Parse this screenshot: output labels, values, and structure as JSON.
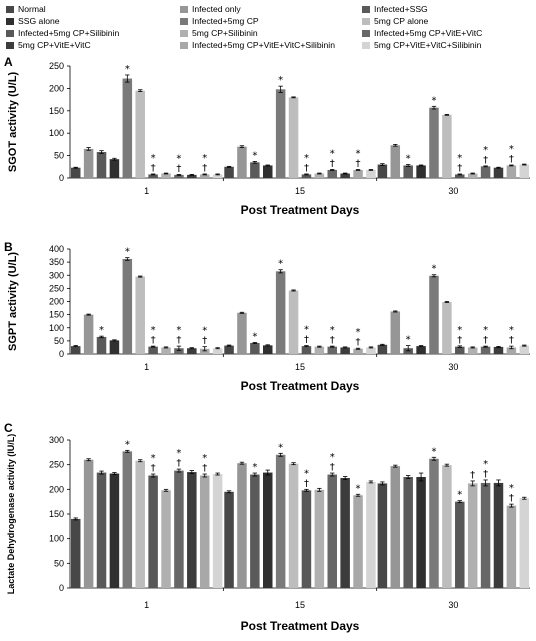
{
  "series": [
    {
      "name": "Normal",
      "color": "#474747"
    },
    {
      "name": "Infected only",
      "color": "#969696"
    },
    {
      "name": "Infected+SSG",
      "color": "#5a5a5a"
    },
    {
      "name": "SSG alone",
      "color": "#303030"
    },
    {
      "name": "Infected+5mg CP",
      "color": "#7a7a7a"
    },
    {
      "name": "5mg CP alone",
      "color": "#bdbdbd"
    },
    {
      "name": "Infected+5mg CP+Silibinin",
      "color": "#585858"
    },
    {
      "name": "5mg CP+Silibinin",
      "color": "#b0b0b0"
    },
    {
      "name": "Infected+5mg CP+VitE+VitC",
      "color": "#676767"
    },
    {
      "name": "5mg CP+VitE+VitC",
      "color": "#3c3c3c"
    },
    {
      "name": "Infected+5mg CP+VitE+VitC+Silibinin",
      "color": "#a8a8a8"
    },
    {
      "name": "5mg CP+VitE+VitC+Silibinin",
      "color": "#d4d4d4"
    }
  ],
  "chart_data": [
    {
      "panel": "A",
      "type": "bar",
      "categories": [
        "1",
        "15",
        "30"
      ],
      "xlabel": "Post Treatment Days",
      "ylabel": "SGOT activity (U/L)",
      "ylim": [
        0,
        250
      ],
      "yticks": [
        0,
        50,
        100,
        150,
        200,
        250
      ],
      "series_values": [
        [
          23,
          25,
          30
        ],
        [
          65,
          70,
          73
        ],
        [
          58,
          35,
          28
        ],
        [
          42,
          28,
          28
        ],
        [
          222,
          198,
          157
        ],
        [
          195,
          180,
          141
        ],
        [
          8,
          8,
          8
        ],
        [
          10,
          10,
          10
        ],
        [
          7,
          18,
          26
        ],
        [
          7,
          10,
          23
        ],
        [
          8,
          18,
          28
        ],
        [
          8,
          18,
          30
        ]
      ],
      "errors": [
        [
          1,
          1,
          2
        ],
        [
          3,
          2,
          2
        ],
        [
          3,
          2,
          2
        ],
        [
          2,
          1,
          1
        ],
        [
          8,
          7,
          3
        ],
        [
          2,
          1,
          1
        ],
        [
          1,
          1,
          1
        ],
        [
          1,
          1,
          1
        ],
        [
          1,
          1,
          1
        ],
        [
          1,
          1,
          1
        ],
        [
          1,
          1,
          1
        ],
        [
          1,
          1,
          1
        ]
      ],
      "annotations": [
        {
          "cat": 0,
          "series": 4,
          "text": "*"
        },
        {
          "cat": 0,
          "series": 6,
          "text": "*\n†"
        },
        {
          "cat": 0,
          "series": 8,
          "text": "*\n†"
        },
        {
          "cat": 0,
          "series": 10,
          "text": "*\n†"
        },
        {
          "cat": 1,
          "series": 2,
          "text": "*"
        },
        {
          "cat": 1,
          "series": 4,
          "text": "*"
        },
        {
          "cat": 1,
          "series": 6,
          "text": "*\n†"
        },
        {
          "cat": 1,
          "series": 8,
          "text": "*\n†"
        },
        {
          "cat": 1,
          "series": 10,
          "text": "*\n†"
        },
        {
          "cat": 2,
          "series": 2,
          "text": "*"
        },
        {
          "cat": 2,
          "series": 4,
          "text": "*"
        },
        {
          "cat": 2,
          "series": 6,
          "text": "*\n†"
        },
        {
          "cat": 2,
          "series": 8,
          "text": "*\n†"
        },
        {
          "cat": 2,
          "series": 10,
          "text": "*\n†"
        }
      ]
    },
    {
      "panel": "B",
      "type": "bar",
      "categories": [
        "1",
        "15",
        "30"
      ],
      "xlabel": "Post Treatment Days",
      "ylabel": "SGPT activity (U/L)",
      "ylim": [
        0,
        400
      ],
      "yticks": [
        0,
        50,
        100,
        150,
        200,
        250,
        300,
        350,
        400
      ],
      "series_values": [
        [
          30,
          32,
          35
        ],
        [
          150,
          157,
          162
        ],
        [
          65,
          42,
          22
        ],
        [
          52,
          33,
          30
        ],
        [
          362,
          315,
          298
        ],
        [
          295,
          242,
          198
        ],
        [
          28,
          30,
          28
        ],
        [
          25,
          28,
          25
        ],
        [
          22,
          28,
          28
        ],
        [
          22,
          25,
          27
        ],
        [
          20,
          20,
          25
        ],
        [
          22,
          25,
          32
        ]
      ],
      "errors": [
        [
          2,
          2,
          2
        ],
        [
          2,
          2,
          2
        ],
        [
          3,
          2,
          10
        ],
        [
          2,
          2,
          2
        ],
        [
          5,
          6,
          4
        ],
        [
          2,
          2,
          2
        ],
        [
          2,
          2,
          3
        ],
        [
          2,
          2,
          2
        ],
        [
          8,
          2,
          2
        ],
        [
          2,
          2,
          2
        ],
        [
          8,
          2,
          5
        ],
        [
          2,
          2,
          2
        ]
      ],
      "annotations": [
        {
          "cat": 0,
          "series": 2,
          "text": "*"
        },
        {
          "cat": 0,
          "series": 4,
          "text": "*"
        },
        {
          "cat": 0,
          "series": 6,
          "text": "*\n†"
        },
        {
          "cat": 0,
          "series": 8,
          "text": "*\n†"
        },
        {
          "cat": 0,
          "series": 10,
          "text": "*\n†"
        },
        {
          "cat": 1,
          "series": 2,
          "text": "*"
        },
        {
          "cat": 1,
          "series": 4,
          "text": "*"
        },
        {
          "cat": 1,
          "series": 6,
          "text": "*\n†"
        },
        {
          "cat": 1,
          "series": 8,
          "text": "*\n†"
        },
        {
          "cat": 1,
          "series": 10,
          "text": "*\n†"
        },
        {
          "cat": 2,
          "series": 2,
          "text": "*"
        },
        {
          "cat": 2,
          "series": 4,
          "text": "*"
        },
        {
          "cat": 2,
          "series": 6,
          "text": "*\n†"
        },
        {
          "cat": 2,
          "series": 8,
          "text": "*\n†"
        },
        {
          "cat": 2,
          "series": 10,
          "text": "*\n†"
        }
      ]
    },
    {
      "panel": "C",
      "type": "bar",
      "categories": [
        "1",
        "15",
        "30"
      ],
      "xlabel": "Post Treatment Days",
      "ylabel": "Lactate Dehydrogenase activity (IU/L)",
      "ylim": [
        0,
        300
      ],
      "yticks": [
        0,
        50,
        100,
        150,
        200,
        250,
        300
      ],
      "series_values": [
        [
          140,
          195,
          212
        ],
        [
          260,
          253,
          247
        ],
        [
          234,
          230,
          225
        ],
        [
          232,
          234,
          225
        ],
        [
          277,
          270,
          262
        ],
        [
          258,
          252,
          249
        ],
        [
          228,
          198,
          175
        ],
        [
          198,
          199,
          212
        ],
        [
          238,
          230,
          213
        ],
        [
          235,
          223,
          213
        ],
        [
          228,
          188,
          167
        ],
        [
          231,
          215,
          182
        ]
      ],
      "errors": [
        [
          2,
          2,
          3
        ],
        [
          2,
          2,
          2
        ],
        [
          3,
          3,
          3
        ],
        [
          2,
          5,
          8
        ],
        [
          2,
          3,
          3
        ],
        [
          2,
          2,
          2
        ],
        [
          3,
          2,
          2
        ],
        [
          2,
          3,
          5
        ],
        [
          3,
          3,
          6
        ],
        [
          3,
          3,
          6
        ],
        [
          3,
          2,
          3
        ],
        [
          2,
          2,
          2
        ]
      ],
      "annotations": [
        {
          "cat": 0,
          "series": 4,
          "text": "*"
        },
        {
          "cat": 0,
          "series": 6,
          "text": "*\n†"
        },
        {
          "cat": 0,
          "series": 8,
          "text": "*\n†"
        },
        {
          "cat": 0,
          "series": 10,
          "text": "*\n†"
        },
        {
          "cat": 1,
          "series": 2,
          "text": "*"
        },
        {
          "cat": 1,
          "series": 4,
          "text": "*"
        },
        {
          "cat": 1,
          "series": 6,
          "text": "*\n†"
        },
        {
          "cat": 1,
          "series": 8,
          "text": "*\n†"
        },
        {
          "cat": 1,
          "series": 10,
          "text": "*"
        },
        {
          "cat": 2,
          "series": 4,
          "text": "*"
        },
        {
          "cat": 2,
          "series": 6,
          "text": "*"
        },
        {
          "cat": 2,
          "series": 7,
          "text": "†"
        },
        {
          "cat": 2,
          "series": 8,
          "text": "*\n†"
        },
        {
          "cat": 2,
          "series": 10,
          "text": "*\n†"
        }
      ]
    }
  ]
}
